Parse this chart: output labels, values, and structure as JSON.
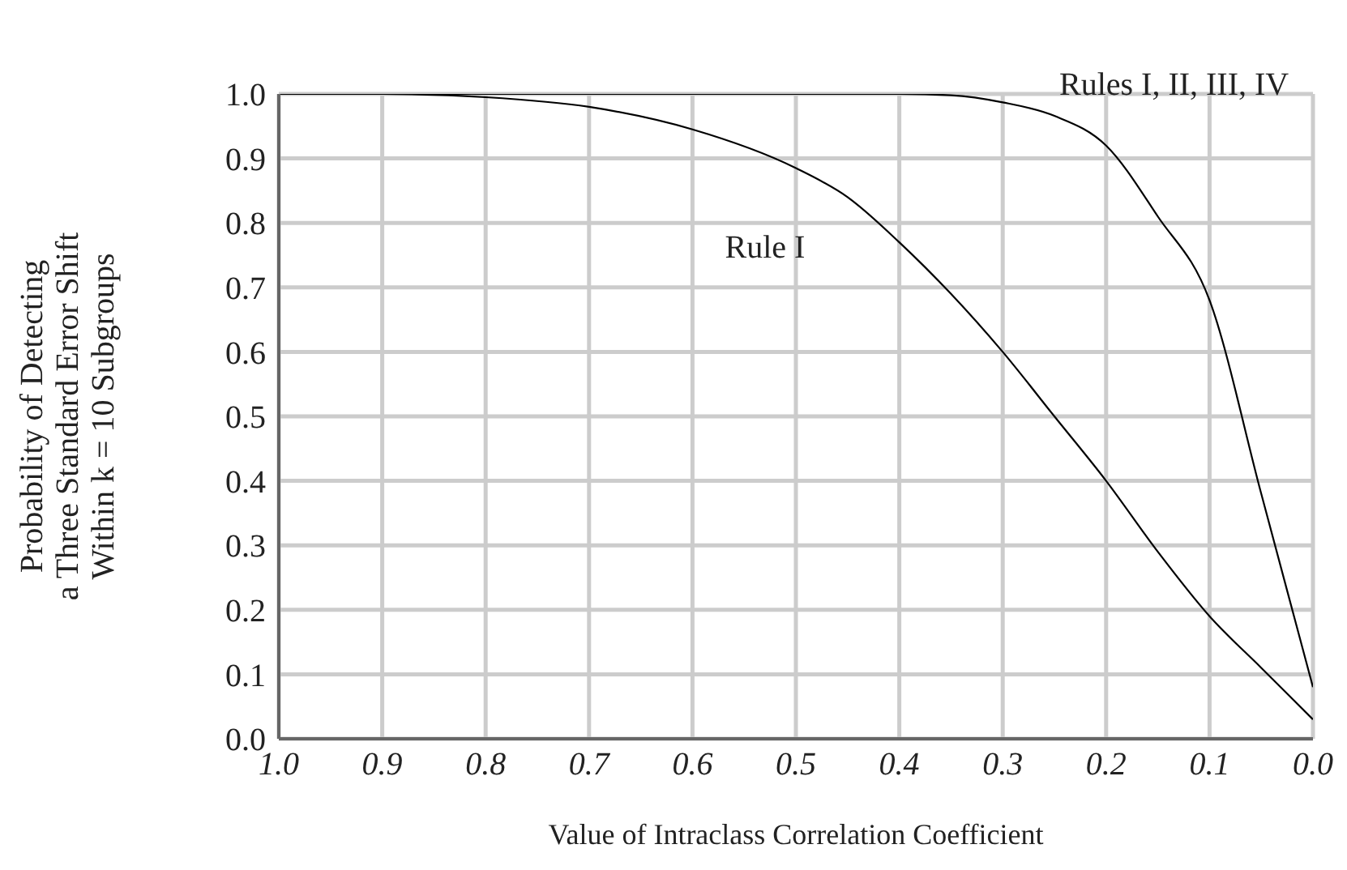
{
  "chart_data": {
    "type": "line",
    "xlabel": "Value of Intraclass Correlation Coefficient",
    "ylabel": "Probability of Detecting\na Three Standard Error Shift\nWithin k = 10 Subgroups",
    "xlim": [
      1.0,
      0.0
    ],
    "xticks": [
      {
        "value": 1,
        "label": "1.0"
      },
      0.9,
      0.8,
      0.7,
      0.6,
      0.5,
      0.4,
      0.3,
      0.2,
      0.1,
      {
        "value": 0,
        "label": "0.0"
      }
    ],
    "ylim": [
      0,
      1
    ],
    "yticks": [
      {
        "value": 0,
        "label": "0.0"
      },
      0.1,
      0.2,
      0.3,
      0.4,
      0.5,
      0.6,
      0.7,
      0.8,
      0.9,
      {
        "value": 1,
        "label": "1.0"
      }
    ],
    "grid": true,
    "legend": false,
    "marker": "none",
    "line_style": "solid",
    "series": [
      {
        "name": "Rule I",
        "color": "#000000",
        "x": [
          1.0,
          0.9,
          0.8,
          0.7,
          0.6,
          0.5,
          0.45,
          0.4,
          0.35,
          0.3,
          0.25,
          0.2,
          0.15,
          0.1,
          0.05,
          0.0
        ],
        "values": [
          1.0,
          1.0,
          0.995,
          0.98,
          0.945,
          0.885,
          0.84,
          0.77,
          0.69,
          0.6,
          0.5,
          0.4,
          0.29,
          0.19,
          0.11,
          0.03
        ]
      },
      {
        "name": "Rules I, II, III, IV",
        "color": "#000000",
        "x": [
          1.0,
          0.8,
          0.6,
          0.4,
          0.35,
          0.3,
          0.25,
          0.2,
          0.15,
          0.1,
          0.05,
          0.0
        ],
        "values": [
          1.0,
          1.0,
          1.0,
          1.0,
          0.998,
          0.987,
          0.966,
          0.92,
          0.81,
          0.68,
          0.38,
          0.08
        ]
      }
    ]
  }
}
